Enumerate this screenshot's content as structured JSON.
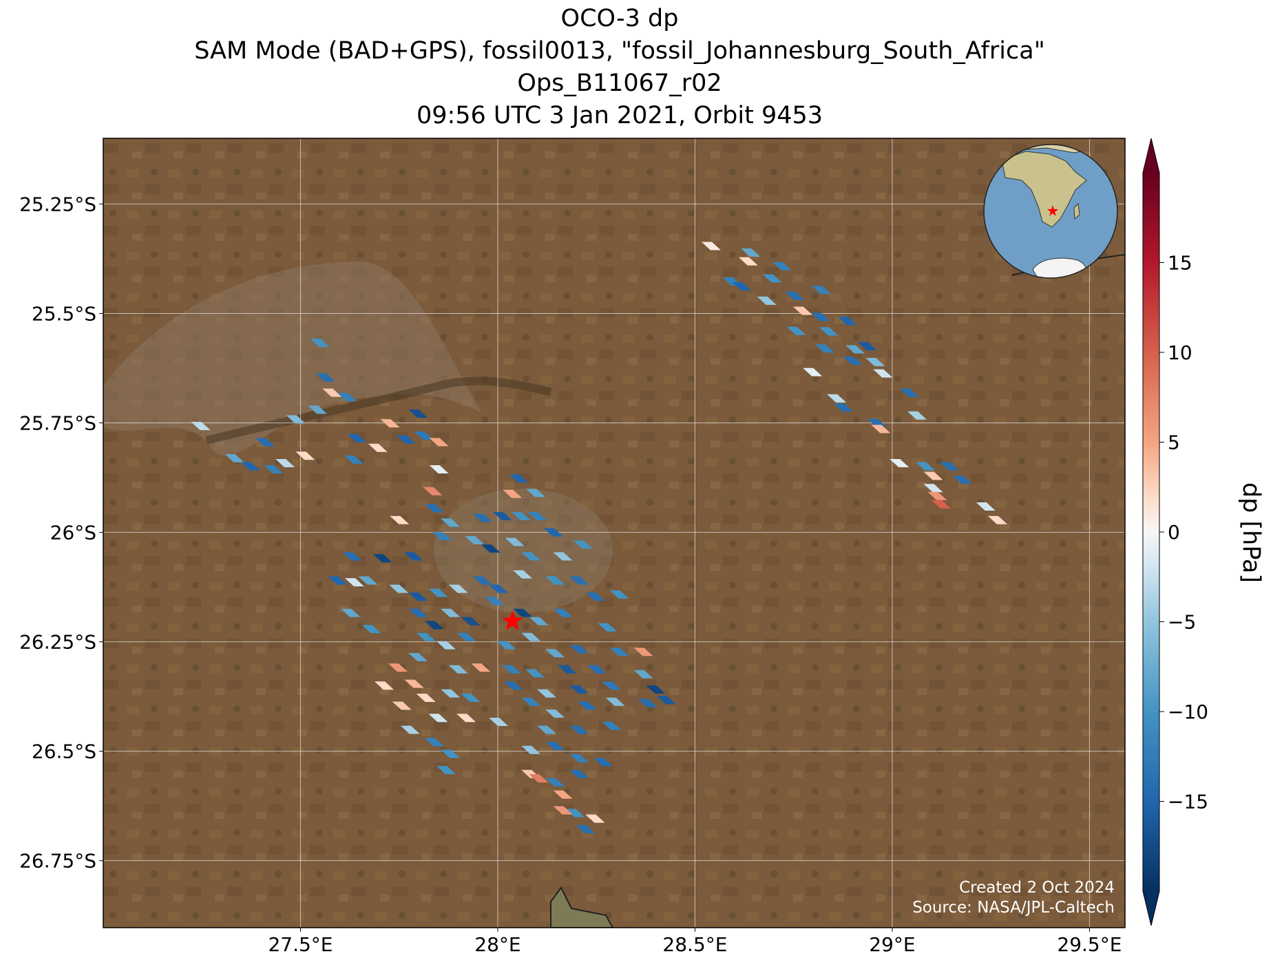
{
  "chart_data": {
    "type": "map",
    "title": [
      "OCO-3 dp",
      "SAM Mode (BAD+GPS), fossil0013, \"fossil_Johannesburg_South_Africa\"",
      "Ops_B11067_r02",
      "09:56 UTC 3 Jan 2021, Orbit 9453"
    ],
    "x": [
      28.541,
      28.641,
      28.635,
      28.72,
      28.594,
      28.696,
      28.618,
      28.753,
      28.82,
      28.682,
      28.773,
      28.818,
      28.886,
      28.757,
      28.839,
      28.829,
      28.906,
      28.937,
      28.957,
      28.9,
      28.976,
      28.798,
      28.859,
      28.876,
      28.961,
      28.971,
      29.043,
      29.063,
      29.018,
      29.084,
      29.145,
      29.178,
      29.104,
      29.104,
      29.114,
      29.124,
      29.237,
      29.267,
      27.247,
      27.333,
      27.373,
      27.41,
      27.431,
      27.461,
      27.512,
      27.488,
      27.543,
      27.549,
      27.563,
      27.58,
      27.618,
      27.635,
      27.643,
      27.696,
      27.727,
      27.767,
      27.798,
      27.812,
      27.851,
      27.851,
      27.835,
      28.037,
      28.053,
      28.096,
      27.751,
      27.839,
      27.88,
      27.961,
      28.012,
      28.059,
      28.1,
      28.141,
      27.631,
      27.708,
      27.786,
      27.859,
      27.941,
      27.982,
      28.043,
      28.084,
      28.165,
      28.216,
      27.594,
      27.637,
      27.671,
      27.749,
      27.798,
      27.849,
      27.9,
      27.961,
      28.002,
      28.063,
      28.145,
      28.206,
      27.627,
      27.68,
      27.798,
      27.839,
      27.88,
      27.931,
      27.992,
      28.063,
      28.104,
      28.165,
      28.247,
      28.308,
      27.818,
      27.869,
      27.92,
      28.022,
      28.084,
      28.145,
      28.206,
      28.278,
      28.308,
      28.369,
      27.747,
      27.798,
      27.9,
      27.957,
      28.035,
      28.094,
      28.176,
      28.251,
      28.369,
      27.712,
      27.788,
      27.88,
      28.039,
      28.124,
      28.206,
      28.288,
      28.4,
      28.427,
      27.757,
      27.818,
      27.931,
      28.002,
      28.084,
      28.145,
      28.227,
      28.298,
      28.38,
      27.778,
      27.849,
      27.92,
      28.124,
      28.206,
      28.288,
      27.839,
      27.88,
      28.084,
      28.145,
      28.206,
      28.267,
      27.869,
      28.084,
      28.104,
      28.145,
      28.206,
      28.165,
      28.196,
      28.247,
      28.222,
      28.165
    ],
    "y": [
      -25.346,
      -25.361,
      -25.381,
      -25.392,
      -25.427,
      -25.42,
      -25.438,
      -25.46,
      -25.446,
      -25.471,
      -25.494,
      -25.508,
      -25.517,
      -25.54,
      -25.541,
      -25.58,
      -25.582,
      -25.575,
      -25.611,
      -25.608,
      -25.637,
      -25.634,
      -25.694,
      -25.715,
      -25.75,
      -25.764,
      -25.681,
      -25.733,
      -25.842,
      -25.849,
      -25.849,
      -25.88,
      -25.871,
      -25.899,
      -25.917,
      -25.936,
      -25.941,
      -25.972,
      -25.757,
      -25.831,
      -25.849,
      -25.794,
      -25.856,
      -25.842,
      -25.825,
      -25.742,
      -25.72,
      -25.567,
      -25.646,
      -25.681,
      -25.691,
      -25.834,
      -25.785,
      -25.807,
      -25.751,
      -25.788,
      -25.729,
      -25.779,
      -25.794,
      -25.856,
      -25.906,
      -25.912,
      -25.877,
      -25.91,
      -25.972,
      -25.945,
      -25.978,
      -25.967,
      -25.963,
      -25.963,
      -25.963,
      -26.0,
      -26.055,
      -26.059,
      -26.055,
      -26.009,
      -26.018,
      -26.037,
      -26.022,
      -26.055,
      -26.055,
      -26.028,
      -26.11,
      -26.114,
      -26.11,
      -26.129,
      -26.147,
      -26.138,
      -26.129,
      -26.11,
      -26.129,
      -26.096,
      -26.11,
      -26.11,
      -26.184,
      -26.221,
      -26.184,
      -26.212,
      -26.184,
      -26.203,
      -26.157,
      -26.184,
      -26.203,
      -26.184,
      -26.147,
      -26.142,
      -26.239,
      -26.258,
      -26.239,
      -26.258,
      -26.239,
      -26.276,
      -26.267,
      -26.217,
      -26.273,
      -26.273,
      -26.309,
      -26.285,
      -26.313,
      -26.309,
      -26.313,
      -26.322,
      -26.313,
      -26.313,
      -26.324,
      -26.35,
      -26.346,
      -26.368,
      -26.35,
      -26.368,
      -26.359,
      -26.35,
      -26.359,
      -26.383,
      -26.396,
      -26.378,
      -26.378,
      -26.433,
      -26.387,
      -26.414,
      -26.396,
      -26.387,
      -26.39,
      -26.451,
      -26.424,
      -26.424,
      -26.451,
      -26.451,
      -26.442,
      -26.479,
      -26.506,
      -26.497,
      -26.488,
      -26.516,
      -26.525,
      -26.543,
      -26.552,
      -26.562,
      -26.571,
      -26.552,
      -26.599,
      -26.641,
      -26.654,
      -26.678,
      -26.635
    ],
    "values": [
      1,
      -8,
      2,
      -12,
      -12,
      -10,
      -15,
      -14,
      -12,
      -5,
      3,
      -14,
      -15,
      -10,
      -10,
      -12,
      -8,
      -16,
      -6,
      -14,
      -2,
      -1,
      -3,
      -14,
      -14,
      4,
      -14,
      -4,
      -1,
      -10,
      -14,
      -14,
      3,
      -2,
      6,
      10,
      -2,
      2,
      -3,
      -8,
      -15,
      -14,
      -12,
      -3,
      2,
      -6,
      -8,
      -10,
      -14,
      3,
      -12,
      -12,
      -15,
      2,
      4,
      -15,
      -17,
      -13,
      5,
      -1,
      7,
      5,
      -15,
      -8,
      2,
      -14,
      -8,
      -14,
      -16,
      -10,
      -12,
      -15,
      -14,
      -18,
      -16,
      -12,
      -8,
      -18,
      -6,
      -10,
      -5,
      -10,
      -15,
      -2,
      -8,
      -5,
      -16,
      -10,
      -4,
      -14,
      -15,
      -4,
      -10,
      -14,
      -8,
      -10,
      -14,
      -18,
      -6,
      -17,
      -12,
      -18,
      -8,
      -12,
      -14,
      -10,
      -10,
      -4,
      -12,
      -10,
      -6,
      -8,
      -14,
      -10,
      -12,
      6,
      6,
      -8,
      -6,
      5,
      -12,
      -10,
      -16,
      -14,
      -8,
      2,
      4,
      -5,
      -14,
      -5,
      -16,
      -13,
      -18,
      -16,
      3,
      2,
      -10,
      -4,
      -12,
      -6,
      -14,
      -6,
      -14,
      -4,
      -2,
      2,
      -8,
      -14,
      -12,
      -12,
      -10,
      -5,
      -14,
      -12,
      -14,
      -10,
      3,
      8,
      -12,
      -14,
      5,
      -10,
      2,
      -14,
      6
    ],
    "target": {
      "x": 28.037,
      "y": -26.203
    },
    "xlim": [
      27.0,
      29.59
    ],
    "ylim": [
      -26.903,
      -25.1
    ],
    "xticks": [
      {
        "value": 27.5,
        "label": "27.5°E"
      },
      {
        "value": 28,
        "label": "28°E"
      },
      {
        "value": 28.5,
        "label": "28.5°E"
      },
      {
        "value": 29,
        "label": "29°E"
      },
      {
        "value": 29.5,
        "label": "29.5°E"
      }
    ],
    "yticks": [
      {
        "value": -25.25,
        "label": "25.25°S"
      },
      {
        "value": -25.5,
        "label": "25.5°S"
      },
      {
        "value": -25.75,
        "label": "25.75°S"
      },
      {
        "value": -26,
        "label": "26°S"
      },
      {
        "value": -26.25,
        "label": "26.25°S"
      },
      {
        "value": -26.5,
        "label": "26.5°S"
      },
      {
        "value": -26.75,
        "label": "26.75°S"
      }
    ],
    "grid": true,
    "colormap": "RdBu_r",
    "clim": [
      -20,
      20
    ],
    "cticks": [
      {
        "value": -15,
        "label": "−15"
      },
      {
        "value": -10,
        "label": "−10"
      },
      {
        "value": -5,
        "label": "−5"
      },
      0,
      5,
      10,
      15
    ],
    "colorbar_label": "dp [hPa]",
    "annotations": [
      "Created 2 Oct 2024",
      "Source: NASA/JPL-Caltech"
    ]
  }
}
